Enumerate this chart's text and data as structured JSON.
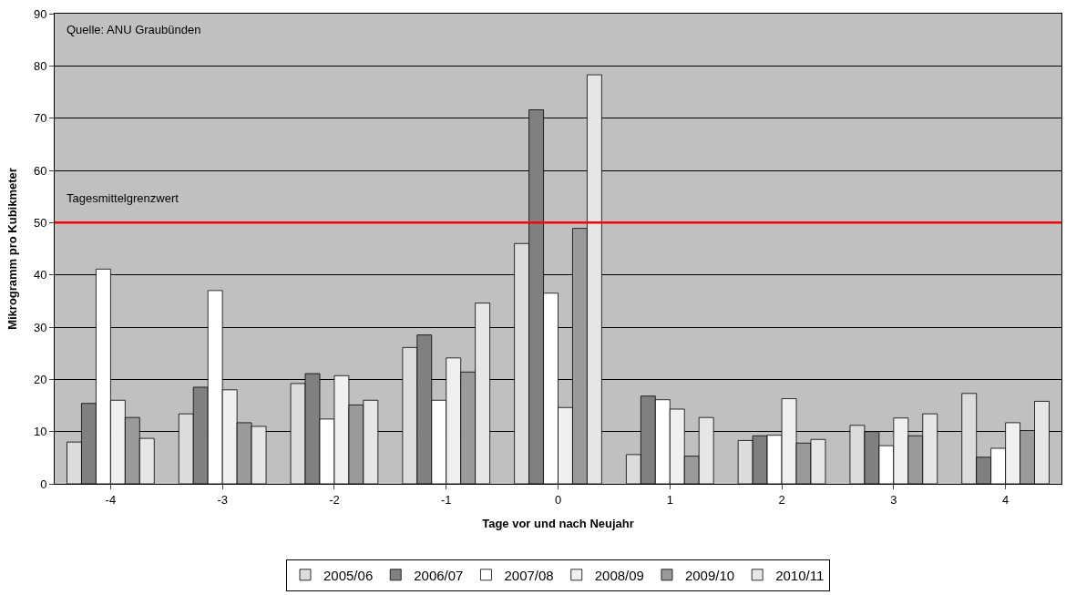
{
  "chart_data": {
    "type": "bar",
    "xlabel": "Tage vor und nach Neujahr",
    "ylabel": "Mikrogramm pro Kubikmeter",
    "categories": [
      "-4",
      "-3",
      "-2",
      "-1",
      "0",
      "1",
      "2",
      "3",
      "4"
    ],
    "series": [
      {
        "name": "2005/06",
        "color": "#dcdcdc",
        "values": [
          8.0,
          13.4,
          19.2,
          26.1,
          46.0,
          5.6,
          8.3,
          11.2,
          17.3
        ]
      },
      {
        "name": "2006/07",
        "color": "#808080",
        "values": [
          15.4,
          18.5,
          21.1,
          28.5,
          71.6,
          16.8,
          9.2,
          10.0,
          5.1
        ]
      },
      {
        "name": "2007/08",
        "color": "#ffffff",
        "values": [
          41.1,
          37.0,
          12.4,
          16.0,
          36.5,
          16.1,
          9.3,
          7.3,
          6.8
        ]
      },
      {
        "name": "2008/09",
        "color": "#f0f0f0",
        "values": [
          16.0,
          18.0,
          20.7,
          24.1,
          14.6,
          14.3,
          16.3,
          12.6,
          11.7
        ]
      },
      {
        "name": "2009/10",
        "color": "#9a9a9a",
        "values": [
          12.7,
          11.7,
          15.1,
          21.4,
          48.9,
          5.3,
          7.8,
          9.2,
          10.2
        ]
      },
      {
        "name": "2010/11",
        "color": "#e6e6e6",
        "values": [
          8.7,
          11.0,
          16.0,
          34.6,
          78.3,
          12.7,
          8.5,
          13.4,
          15.8
        ]
      }
    ],
    "ylim": [
      0,
      90
    ],
    "yticks": [
      0,
      10,
      20,
      30,
      40,
      50,
      60,
      70,
      80,
      90
    ],
    "grid": "y",
    "legend": "bottom",
    "ref_lines": [
      {
        "axis": "y",
        "value": 50,
        "label": "Tagesmittelgrenzwert",
        "color": "#ff0000"
      }
    ],
    "annotations": [
      "Quelle: ANU Graubünden"
    ]
  }
}
